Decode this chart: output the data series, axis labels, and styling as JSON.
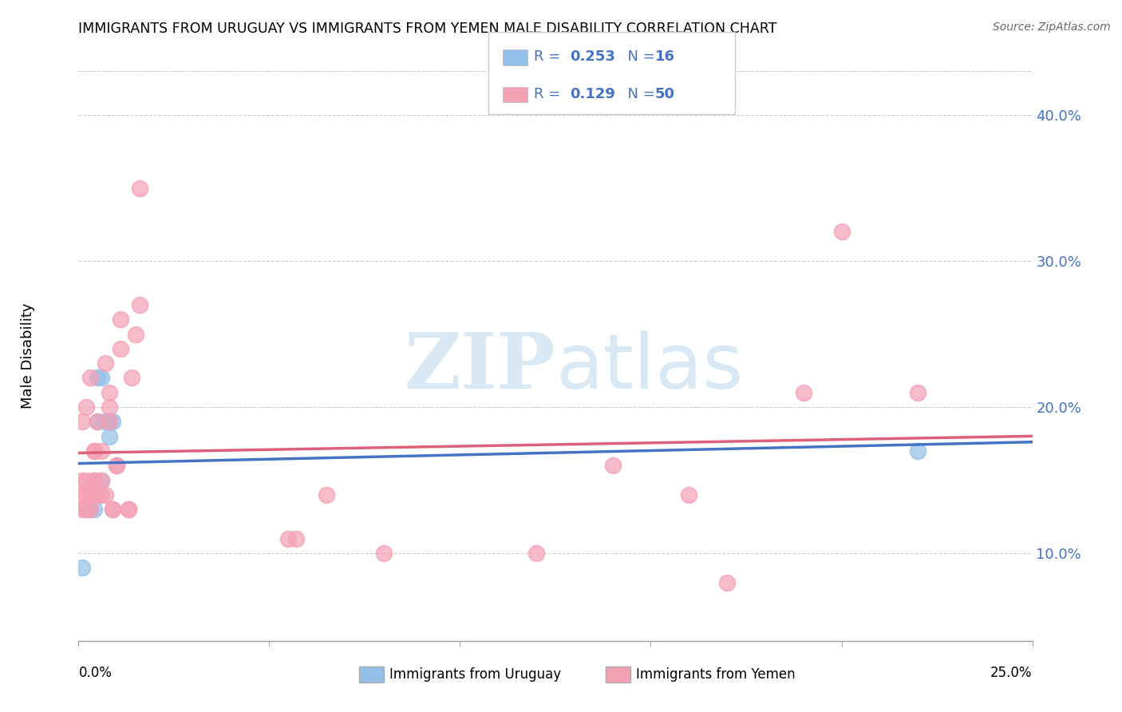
{
  "title": "IMMIGRANTS FROM URUGUAY VS IMMIGRANTS FROM YEMEN MALE DISABILITY CORRELATION CHART",
  "source": "Source: ZipAtlas.com",
  "ylabel": "Male Disability",
  "yticks": [
    0.1,
    0.2,
    0.3,
    0.4
  ],
  "ytick_labels": [
    "10.0%",
    "20.0%",
    "30.0%",
    "40.0%"
  ],
  "xlim": [
    0.0,
    0.25
  ],
  "ylim": [
    0.04,
    0.43
  ],
  "color_uruguay": "#92c0e8",
  "color_yemen": "#f4a0b5",
  "line_color_uruguay": "#4472c4",
  "line_color_yemen": "#e0607a",
  "background_color": "#ffffff",
  "grid_color": "#cccccc",
  "watermark_color": "#d8e8f4",
  "uruguay_x": [
    0.001,
    0.002,
    0.003,
    0.003,
    0.003,
    0.004,
    0.004,
    0.005,
    0.005,
    0.006,
    0.007,
    0.008,
    0.008,
    0.009,
    0.22,
    0.006
  ],
  "uruguay_y": [
    0.09,
    0.13,
    0.13,
    0.14,
    0.14,
    0.13,
    0.14,
    0.19,
    0.22,
    0.22,
    0.19,
    0.19,
    0.18,
    0.19,
    0.17,
    0.15
  ],
  "yemen_x": [
    0.001,
    0.001,
    0.001,
    0.001,
    0.002,
    0.002,
    0.002,
    0.002,
    0.003,
    0.003,
    0.003,
    0.003,
    0.004,
    0.004,
    0.004,
    0.004,
    0.005,
    0.005,
    0.005,
    0.006,
    0.006,
    0.006,
    0.007,
    0.007,
    0.008,
    0.008,
    0.008,
    0.009,
    0.009,
    0.01,
    0.01,
    0.011,
    0.011,
    0.013,
    0.013,
    0.014,
    0.015,
    0.016,
    0.016,
    0.055,
    0.057,
    0.065,
    0.08,
    0.12,
    0.14,
    0.16,
    0.17,
    0.19,
    0.2,
    0.22
  ],
  "yemen_y": [
    0.13,
    0.14,
    0.15,
    0.19,
    0.13,
    0.14,
    0.15,
    0.2,
    0.13,
    0.14,
    0.14,
    0.22,
    0.15,
    0.15,
    0.17,
    0.17,
    0.14,
    0.14,
    0.19,
    0.14,
    0.15,
    0.17,
    0.14,
    0.23,
    0.19,
    0.2,
    0.21,
    0.13,
    0.13,
    0.16,
    0.16,
    0.24,
    0.26,
    0.13,
    0.13,
    0.22,
    0.25,
    0.27,
    0.35,
    0.11,
    0.11,
    0.14,
    0.1,
    0.1,
    0.16,
    0.14,
    0.08,
    0.21,
    0.32,
    0.21
  ],
  "r_uruguay": "0.253",
  "n_uruguay": "16",
  "r_yemen": "0.129",
  "n_yemen": "50"
}
